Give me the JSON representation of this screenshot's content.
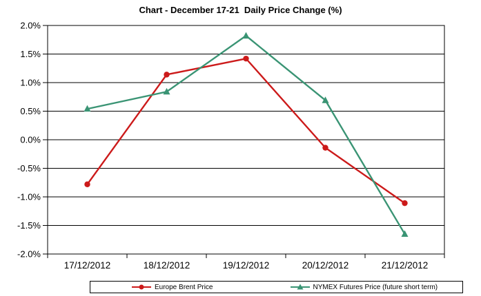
{
  "chart_data": {
    "type": "line",
    "title": "Chart - December 17-21  Daily Price Change (%)",
    "categories": [
      "17/12/2012",
      "18/12/2012",
      "19/12/2012",
      "20/12/2012",
      "21/12/2012"
    ],
    "series": [
      {
        "name": "Europe Brent Price",
        "color": "#cc1a1a",
        "marker": "circle",
        "values": [
          -0.78,
          1.14,
          1.42,
          -0.14,
          -1.11
        ]
      },
      {
        "name": "NYMEX Futures Price (future short term)",
        "color": "#3a9474",
        "marker": "triangle-up",
        "values": [
          0.54,
          0.84,
          1.82,
          0.69,
          -1.65
        ]
      }
    ],
    "xlabel": "",
    "ylabel": "",
    "ylim": [
      -2.0,
      2.0
    ],
    "ytick_step": 0.5,
    "yticklabels": [
      "2.0%",
      "1.5%",
      "1.0%",
      "0.5%",
      "0.0%",
      "-0.5%",
      "-1.0%",
      "-1.5%",
      "-2.0%"
    ],
    "grid": "horizontal",
    "legend_position": "bottom",
    "background_color": "#ffffff",
    "axis_color": "#000000"
  }
}
